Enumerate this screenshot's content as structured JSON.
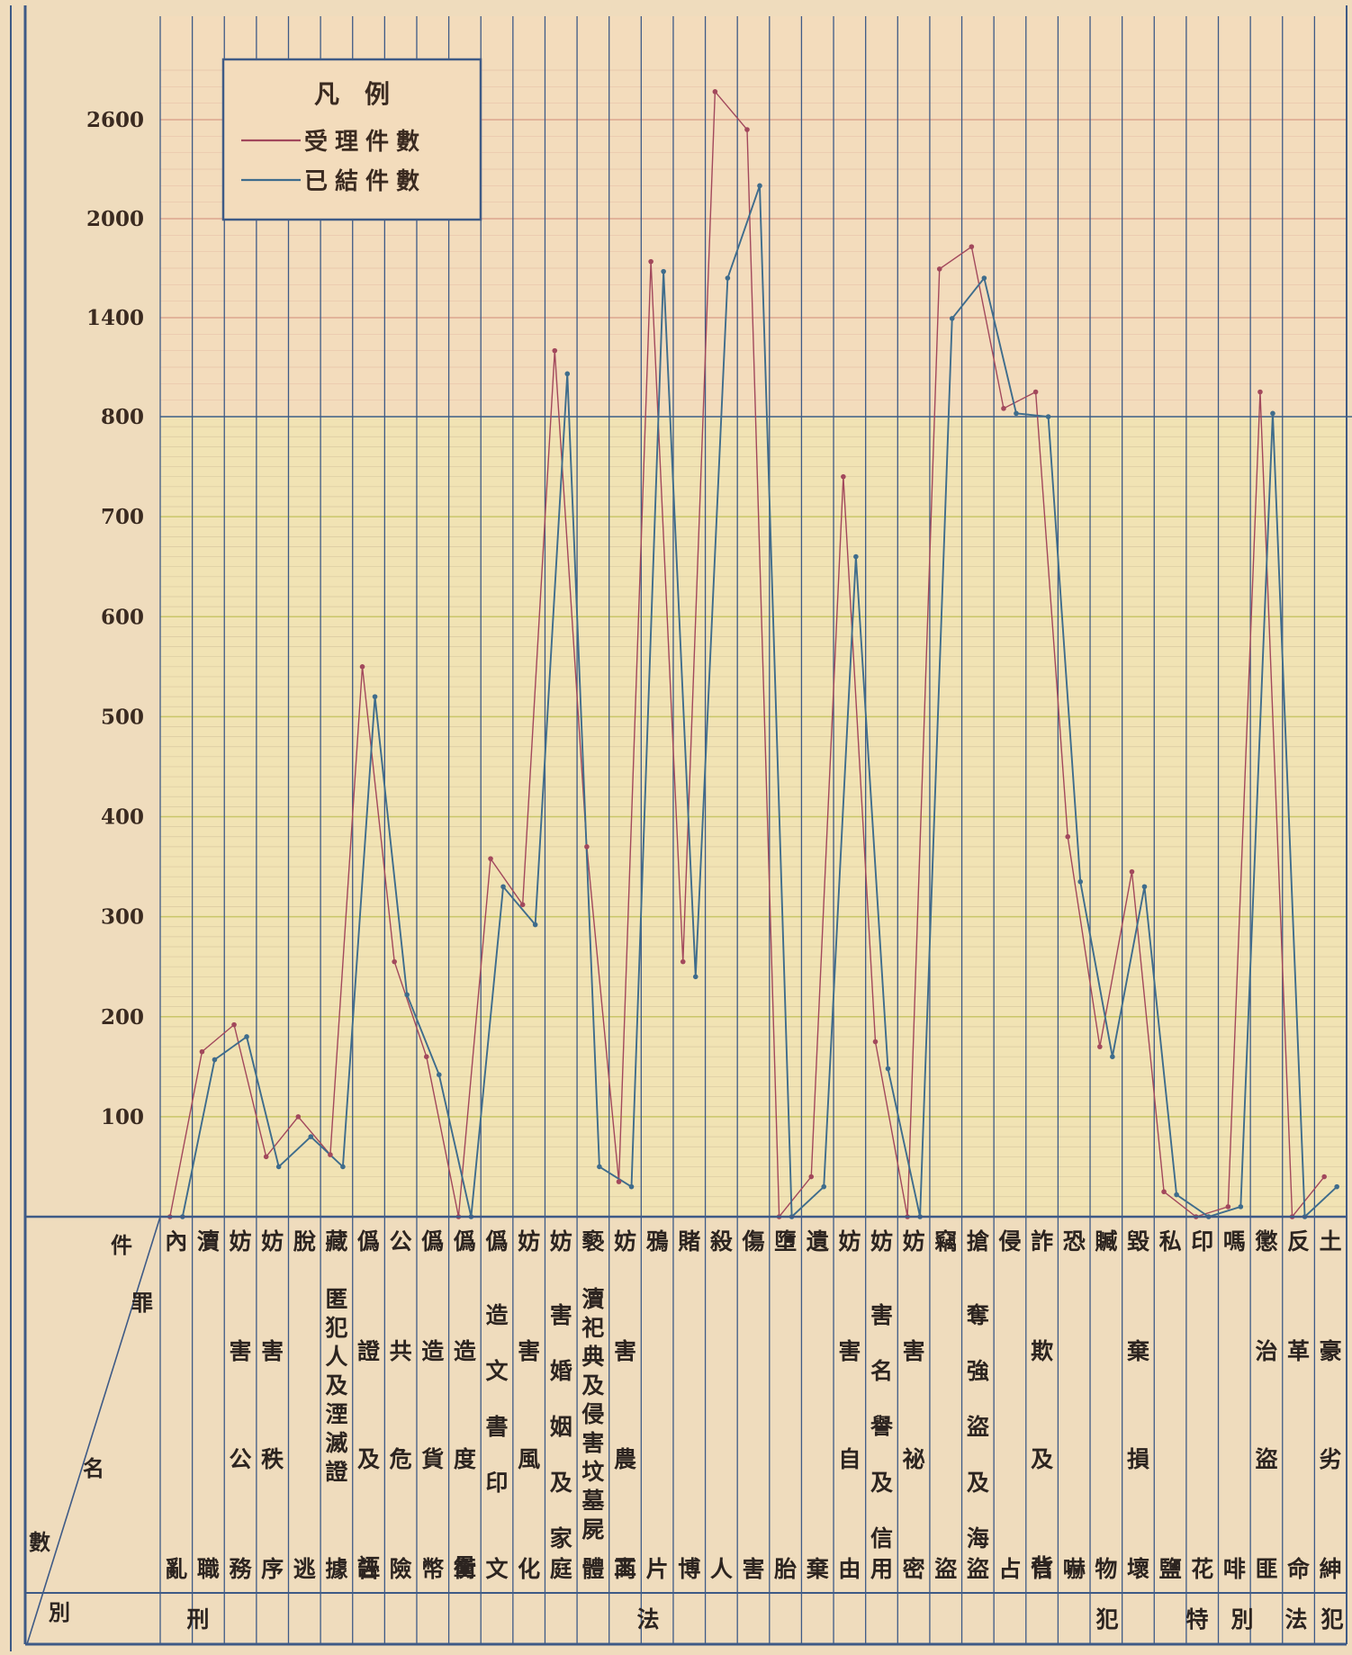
{
  "chart_data": {
    "type": "line",
    "title": "",
    "y_tick_labels": [
      "100",
      "200",
      "300",
      "400",
      "500",
      "600",
      "700",
      "800",
      "1400",
      "2000",
      "2600"
    ],
    "y_scale": "piecewise: linear 0–800 in steps of 100, then 800–2600 compressed in steps of 600",
    "ylim": [
      0,
      2950
    ],
    "legend": {
      "title": "凡　例",
      "position": "top-left"
    },
    "categories": [
      {
        "lines": [
          "內",
          "亂"
        ]
      },
      {
        "lines": [
          "瀆",
          "職"
        ]
      },
      {
        "lines": [
          "妨",
          "害公",
          "務"
        ]
      },
      {
        "lines": [
          "妨",
          "害秩",
          "序"
        ]
      },
      {
        "lines": [
          "脫",
          "逃"
        ]
      },
      {
        "lines": [
          "藏",
          "匿犯人及湮滅證",
          "據"
        ]
      },
      {
        "lines": [
          "僞",
          "證及誣",
          "告"
        ]
      },
      {
        "lines": [
          "公",
          "共危",
          "險"
        ]
      },
      {
        "lines": [
          "僞",
          "造貨",
          "幣"
        ]
      },
      {
        "lines": [
          "僞",
          "造度量",
          "衡"
        ]
      },
      {
        "lines": [
          "僞",
          "造文書印",
          "文"
        ]
      },
      {
        "lines": [
          "妨",
          "害風",
          "化"
        ]
      },
      {
        "lines": [
          "妨",
          "害婚姻及家",
          "庭"
        ]
      },
      {
        "lines": [
          "褻",
          "瀆祀典及侵害坟墓屍",
          "體"
        ]
      },
      {
        "lines": [
          "妨",
          "害農工",
          "商"
        ]
      },
      {
        "lines": [
          "鴉",
          "片"
        ]
      },
      {
        "lines": [
          "賭",
          "博"
        ]
      },
      {
        "lines": [
          "殺",
          "人"
        ]
      },
      {
        "lines": [
          "傷",
          "害"
        ]
      },
      {
        "lines": [
          "墮",
          "胎"
        ]
      },
      {
        "lines": [
          "遺",
          "棄"
        ]
      },
      {
        "lines": [
          "妨",
          "害自",
          "由"
        ]
      },
      {
        "lines": [
          "妨",
          "害名譽及信",
          "用"
        ]
      },
      {
        "lines": [
          "妨",
          "害祕",
          "密"
        ]
      },
      {
        "lines": [
          "竊",
          "盜"
        ]
      },
      {
        "lines": [
          "搶",
          "奪強盜及海",
          "盜"
        ]
      },
      {
        "lines": [
          "侵",
          "占"
        ]
      },
      {
        "lines": [
          "詐",
          "欺及背",
          "信"
        ]
      },
      {
        "lines": [
          "恐",
          "嚇"
        ]
      },
      {
        "lines": [
          "贓",
          "物"
        ]
      },
      {
        "lines": [
          "毀",
          "棄損",
          "壞"
        ]
      },
      {
        "lines": [
          "私",
          "鹽"
        ]
      },
      {
        "lines": [
          "印",
          "花"
        ]
      },
      {
        "lines": [
          "嗎",
          "啡"
        ]
      },
      {
        "lines": [
          "懲",
          "治盜",
          "匪"
        ]
      },
      {
        "lines": [
          "反",
          "革",
          "命"
        ]
      },
      {
        "lines": [
          "土",
          "豪劣",
          "紳"
        ]
      }
    ],
    "series": [
      {
        "name": "受理件數",
        "color": "#a2485c",
        "values": [
          0,
          165,
          192,
          60,
          100,
          62,
          550,
          255,
          160,
          0,
          358,
          312,
          1200,
          370,
          35,
          1740,
          255,
          2770,
          2540,
          0,
          40,
          740,
          175,
          0,
          1695,
          1830,
          850,
          950,
          380,
          170,
          345,
          25,
          0,
          10,
          950,
          0,
          40
        ]
      },
      {
        "name": "已結件數",
        "color": "#3e6c8c",
        "values": [
          0,
          157,
          180,
          50,
          80,
          50,
          520,
          222,
          142,
          0,
          330,
          292,
          1060,
          50,
          30,
          1680,
          240,
          1640,
          2200,
          0,
          30,
          660,
          148,
          0,
          1395,
          1640,
          820,
          800,
          335,
          160,
          330,
          22,
          0,
          10,
          820,
          0,
          30
        ]
      }
    ],
    "groups": [
      {
        "label": "刑",
        "span": [
          0,
          2
        ]
      },
      {
        "label": "法",
        "span": [
          3,
          28
        ]
      },
      {
        "label": "犯",
        "span": [
          29,
          31
        ]
      },
      {
        "label": "特　別",
        "span": [
          32,
          34
        ]
      },
      {
        "label": "法",
        "span": [
          34,
          34
        ]
      },
      {
        "label": "犯",
        "span": [
          35,
          36
        ]
      }
    ],
    "header_labels": {
      "count": "件",
      "crime": "罪",
      "name": "名",
      "number": "數",
      "kind": "別"
    }
  }
}
